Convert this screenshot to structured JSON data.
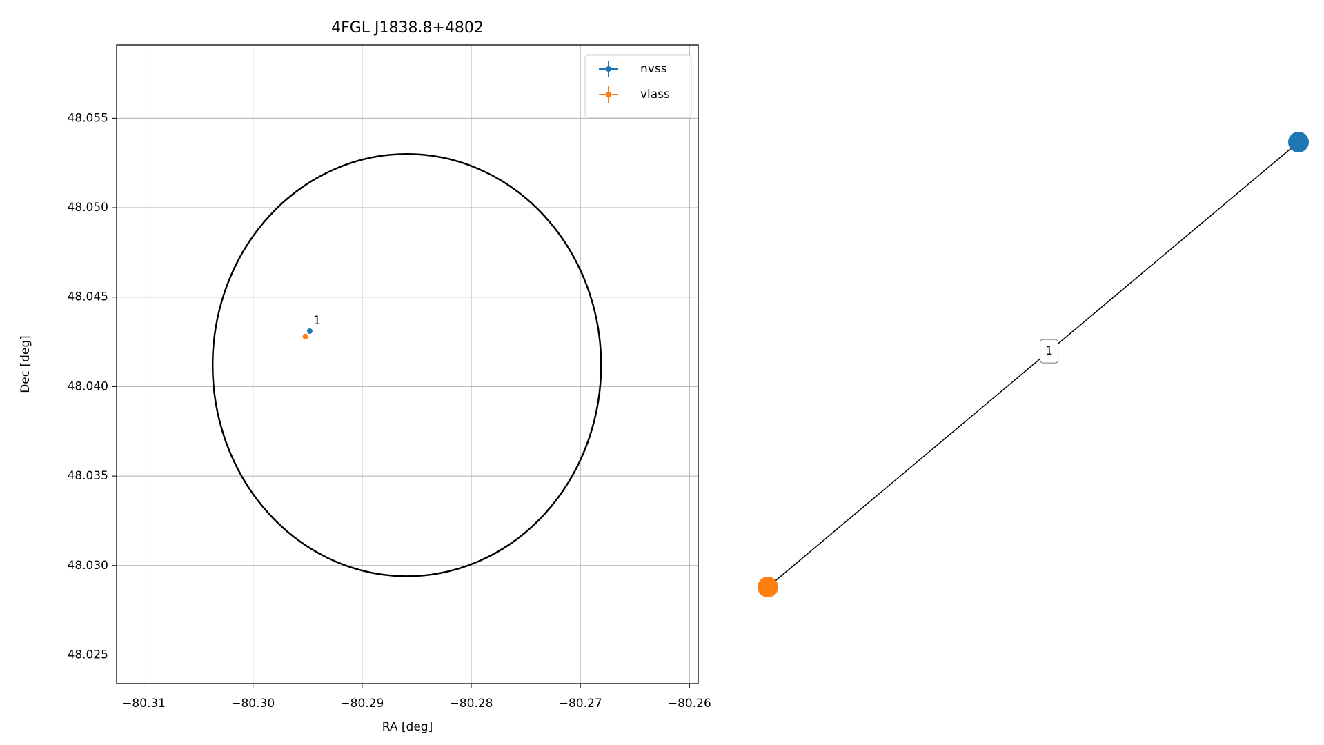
{
  "chart_data": [
    {
      "type": "scatter",
      "title": "4FGL J1838.8+4802",
      "x_label": "RA [deg]",
      "y_label": "Dec [deg]",
      "xlim": [
        -80.3125,
        -80.2592
      ],
      "ylim": [
        48.0234,
        48.0591
      ],
      "xticks": [
        {
          "value": -80.31,
          "label": "−80.31"
        },
        {
          "value": -80.3,
          "label": "−80.30"
        },
        {
          "value": -80.29,
          "label": "−80.29"
        },
        {
          "value": -80.28,
          "label": "−80.28"
        },
        {
          "value": -80.27,
          "label": "−80.27"
        },
        {
          "value": -80.26,
          "label": "−80.26"
        }
      ],
      "yticks": [
        48.025,
        {
          "value": 48.03,
          "label": "48.030"
        },
        48.035,
        {
          "value": 48.04,
          "label": "48.040"
        },
        48.045,
        {
          "value": 48.05,
          "label": "48.050"
        },
        48.055
      ],
      "grid": true,
      "legend": "upper right",
      "series": [
        {
          "name": "nvss",
          "color": "#1f77b4",
          "x": [
            -80.2948
          ],
          "values": [
            48.0431
          ]
        },
        {
          "name": "vlass",
          "color": "#ff7f0e",
          "x": [
            -80.2952
          ],
          "values": [
            48.0428
          ]
        }
      ],
      "region": {
        "center_x": -80.2859,
        "center_y": 48.0412,
        "rx": 0.0178,
        "ry": 0.0118
      },
      "annotations": [
        {
          "text": "1",
          "x": -80.2948,
          "y": 48.0431
        }
      ]
    },
    {
      "type": "graph",
      "nodes": [
        {
          "color": "#1f77b4"
        },
        {
          "color": "#ff7f0e"
        }
      ],
      "edges": [
        {
          "source": 0,
          "target": 1,
          "label": "1"
        }
      ]
    }
  ]
}
